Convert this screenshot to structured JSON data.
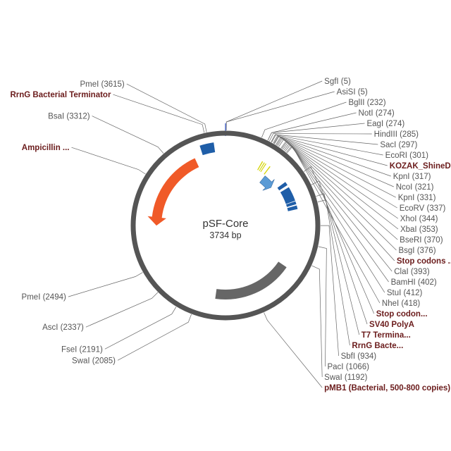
{
  "plasmid": {
    "name": "pSF-Core",
    "length_label": "3734 bp",
    "length": 3734,
    "backbone_color": "#555555"
  },
  "chart_data": {
    "type": "plasmid-map",
    "total_bp": 3734,
    "features": [
      {
        "name": "Ampicillin ...",
        "start": 2800,
        "end": 3480,
        "shape": "arrow",
        "direction": "reverse",
        "track": 1,
        "color": "#f05a28",
        "label_style": "feature"
      },
      {
        "name": "RrnG Bacterial Terminator",
        "start": 3548,
        "end": 3650,
        "shape": "box",
        "track": 0,
        "color": "#1f5ea8",
        "label_style": "feature"
      },
      {
        "name": "KOZAK_ShineDalgarno",
        "start": 308,
        "end": 316,
        "shape": "box",
        "track": 1,
        "color": "#d4d400",
        "label_style": "feature"
      },
      {
        "name": "",
        "start": 326,
        "end": 333,
        "shape": "box",
        "track": 1,
        "color": "#d4d400",
        "label_style": "none"
      },
      {
        "name": "",
        "start": 341,
        "end": 348,
        "shape": "box",
        "track": 1,
        "color": "#d4d400",
        "label_style": "none"
      },
      {
        "name": "Stop codons ...",
        "start": 380,
        "end": 388,
        "shape": "box",
        "track": 1,
        "color": "#d4d400",
        "label_style": "feature"
      },
      {
        "name": "",
        "start": 400,
        "end": 520,
        "shape": "arrow",
        "direction": "forward",
        "track": 2,
        "color": "#5b9bd5",
        "label_style": "none"
      },
      {
        "name": "Stop codon...",
        "start": 560,
        "end": 590,
        "shape": "box",
        "track": 1,
        "color": "#1f5ea8",
        "label_style": "feature"
      },
      {
        "name": "SV40 PolyA",
        "start": 610,
        "end": 730,
        "shape": "box",
        "track": 1,
        "color": "#1f5ea8",
        "label_style": "feature"
      },
      {
        "name": "T7 Termina...",
        "start": 735,
        "end": 760,
        "shape": "box",
        "track": 1,
        "color": "#1f5ea8",
        "label_style": "feature"
      },
      {
        "name": "RrnG Bacte...",
        "start": 770,
        "end": 800,
        "shape": "box",
        "track": 1,
        "color": "#1f5ea8",
        "label_style": "feature"
      },
      {
        "name": "pMB1 (Bacterial, 500-800 copies)",
        "start": 1290,
        "end": 1950,
        "shape": "box",
        "track": 1,
        "color": "#666666",
        "label_style": "feature"
      }
    ],
    "sites": [
      {
        "label": "HindIII (285)",
        "bp": 285,
        "style": "site"
      },
      {
        "label": "NotI (274)",
        "bp": 274,
        "style": "site"
      },
      {
        "label": "EagI (274)",
        "bp": 274,
        "style": "site"
      },
      {
        "label": "BglII (232)",
        "bp": 232,
        "style": "site"
      },
      {
        "label": "SgfI (5)",
        "bp": 5,
        "style": "site"
      },
      {
        "label": "AsiSI (5)",
        "bp": 5,
        "style": "site"
      },
      {
        "label": "PmeI (3615)",
        "bp": 3615,
        "style": "site"
      },
      {
        "label": "RrnG Bacterial Terminator",
        "bp": 3600,
        "style": "feature"
      },
      {
        "label": "BsaI (3312)",
        "bp": 3312,
        "style": "site"
      },
      {
        "label": "Ampicillin ...",
        "bp": 3140,
        "style": "feature"
      },
      {
        "label": "SacI (297)",
        "bp": 297,
        "style": "site"
      },
      {
        "label": "EcoRI (301)",
        "bp": 301,
        "style": "site"
      },
      {
        "label": "KOZAK_ShineDalgarno",
        "bp": 312,
        "style": "feature"
      },
      {
        "label": "KpnI (317)",
        "bp": 317,
        "style": "site"
      },
      {
        "label": "NcoI (321)",
        "bp": 321,
        "style": "site"
      },
      {
        "label": "KpnI (331)",
        "bp": 331,
        "style": "site"
      },
      {
        "label": "EcoRV (337)",
        "bp": 337,
        "style": "site"
      },
      {
        "label": "XhoI (344)",
        "bp": 344,
        "style": "site"
      },
      {
        "label": "XbaI (353)",
        "bp": 353,
        "style": "site"
      },
      {
        "label": "BseRI (370)",
        "bp": 370,
        "style": "site"
      },
      {
        "label": "BsgI (376)",
        "bp": 376,
        "style": "site"
      },
      {
        "label": "Stop codons ...",
        "bp": 384,
        "style": "feature"
      },
      {
        "label": "ClaI (393)",
        "bp": 393,
        "style": "site"
      },
      {
        "label": "BamHI (402)",
        "bp": 402,
        "style": "site"
      },
      {
        "label": "StuI (412)",
        "bp": 412,
        "style": "site"
      },
      {
        "label": "NheI (418)",
        "bp": 418,
        "style": "site"
      },
      {
        "label": "Stop codon...",
        "bp": 575,
        "style": "feature"
      },
      {
        "label": "SV40 PolyA",
        "bp": 670,
        "style": "feature"
      },
      {
        "label": "T7 Termina...",
        "bp": 748,
        "style": "feature"
      },
      {
        "label": "RrnG Bacte...",
        "bp": 785,
        "style": "feature"
      },
      {
        "label": "SbfI (934)",
        "bp": 934,
        "style": "site"
      },
      {
        "label": "PacI (1066)",
        "bp": 1066,
        "style": "site"
      },
      {
        "label": "SwaI (1192)",
        "bp": 1192,
        "style": "site"
      },
      {
        "label": "pMB1 (Bacterial, 500-800 copies)",
        "bp": 1620,
        "style": "feature"
      },
      {
        "label": "SwaI (2085)",
        "bp": 2085,
        "style": "site"
      },
      {
        "label": "FseI (2191)",
        "bp": 2191,
        "style": "site"
      },
      {
        "label": "AscI (2337)",
        "bp": 2337,
        "style": "site"
      },
      {
        "label": "PmeI (2494)",
        "bp": 2494,
        "style": "site"
      }
    ]
  }
}
